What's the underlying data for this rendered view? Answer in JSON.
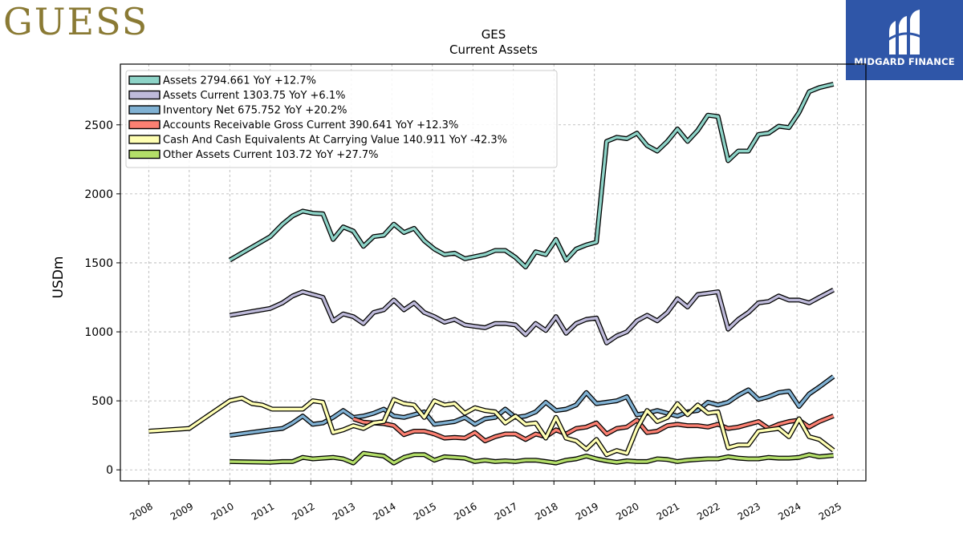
{
  "brand": {
    "name": "GUESS"
  },
  "partner": {
    "name": "MIDGARD FINANCE"
  },
  "chart_data": {
    "type": "line",
    "title": "GES",
    "subtitle": "Current  Assets",
    "ylabel": "USDm",
    "xlabel": "",
    "xlim": [
      2007.3,
      2025.7
    ],
    "ylim": [
      -80,
      2940
    ],
    "yticks": [
      0,
      500,
      1000,
      1500,
      2000,
      2500
    ],
    "xticks": [
      "2008",
      "2009",
      "2010",
      "2011",
      "2012",
      "2013",
      "2014",
      "2015",
      "2016",
      "2017",
      "2018",
      "2019",
      "2020",
      "2021",
      "2022",
      "2023",
      "2024",
      "2025"
    ],
    "grid": true,
    "legend_position": "top-left",
    "series": [
      {
        "name": "Assets",
        "legend": "Assets  2794.661 YoY +12.7%",
        "color": "#8dd3c7",
        "x": [
          2010.0,
          2011.0,
          2011.3,
          2011.55,
          2011.8,
          2012.05,
          2012.3,
          2012.55,
          2012.8,
          2013.05,
          2013.3,
          2013.55,
          2013.8,
          2014.05,
          2014.3,
          2014.55,
          2014.8,
          2015.05,
          2015.3,
          2015.55,
          2015.8,
          2016.05,
          2016.3,
          2016.55,
          2016.8,
          2017.05,
          2017.3,
          2017.55,
          2017.8,
          2018.05,
          2018.3,
          2018.55,
          2018.8,
          2019.05,
          2019.3,
          2019.55,
          2019.8,
          2020.05,
          2020.3,
          2020.55,
          2020.8,
          2021.05,
          2021.3,
          2021.55,
          2021.8,
          2022.05,
          2022.3,
          2022.55,
          2022.8,
          2023.05,
          2023.3,
          2023.55,
          2023.8,
          2024.05,
          2024.3,
          2024.55,
          2024.9
        ],
        "values": [
          1520,
          1690,
          1780,
          1840,
          1875,
          1860,
          1855,
          1670,
          1760,
          1730,
          1620,
          1690,
          1700,
          1780,
          1720,
          1750,
          1660,
          1600,
          1560,
          1570,
          1530,
          1545,
          1560,
          1590,
          1590,
          1540,
          1470,
          1580,
          1560,
          1670,
          1520,
          1600,
          1630,
          1650,
          2380,
          2410,
          2400,
          2440,
          2350,
          2310,
          2380,
          2470,
          2380,
          2460,
          2570,
          2560,
          2240,
          2310,
          2310,
          2430,
          2440,
          2490,
          2480,
          2590,
          2740,
          2770,
          2795
        ]
      },
      {
        "name": "Assets Current",
        "legend": "Assets Current  1303.75 YoY +6.1%",
        "color": "#bebada",
        "x": [
          2010.0,
          2011.0,
          2011.3,
          2011.55,
          2011.8,
          2012.05,
          2012.3,
          2012.55,
          2012.8,
          2013.05,
          2013.3,
          2013.55,
          2013.8,
          2014.05,
          2014.3,
          2014.55,
          2014.8,
          2015.05,
          2015.3,
          2015.55,
          2015.8,
          2016.05,
          2016.3,
          2016.55,
          2016.8,
          2017.05,
          2017.3,
          2017.55,
          2017.8,
          2018.05,
          2018.3,
          2018.55,
          2018.8,
          2019.05,
          2019.3,
          2019.55,
          2019.8,
          2020.05,
          2020.3,
          2020.55,
          2020.8,
          2021.05,
          2021.3,
          2021.55,
          2021.8,
          2022.05,
          2022.3,
          2022.55,
          2022.8,
          2023.05,
          2023.3,
          2023.55,
          2023.8,
          2024.05,
          2024.3,
          2024.55,
          2024.9
        ],
        "values": [
          1120,
          1170,
          1210,
          1260,
          1290,
          1270,
          1250,
          1080,
          1130,
          1110,
          1060,
          1140,
          1160,
          1230,
          1160,
          1210,
          1140,
          1110,
          1070,
          1090,
          1050,
          1040,
          1030,
          1060,
          1060,
          1050,
          980,
          1060,
          1010,
          1110,
          990,
          1060,
          1090,
          1100,
          920,
          970,
          1000,
          1080,
          1120,
          1080,
          1140,
          1240,
          1180,
          1270,
          1280,
          1290,
          1020,
          1090,
          1140,
          1210,
          1220,
          1260,
          1230,
          1230,
          1210,
          1250,
          1304
        ]
      },
      {
        "name": "Inventory Net",
        "legend": "Inventory Net  675.752 YoY +20.2%",
        "color": "#80b1d3",
        "x": [
          2010.0,
          2011.0,
          2011.3,
          2011.55,
          2011.8,
          2012.05,
          2012.3,
          2012.55,
          2012.8,
          2013.05,
          2013.3,
          2013.55,
          2013.8,
          2014.05,
          2014.3,
          2014.55,
          2014.8,
          2015.05,
          2015.3,
          2015.55,
          2015.8,
          2016.05,
          2016.3,
          2016.55,
          2016.8,
          2017.05,
          2017.3,
          2017.55,
          2017.8,
          2018.05,
          2018.3,
          2018.55,
          2018.8,
          2019.05,
          2019.3,
          2019.55,
          2019.8,
          2020.05,
          2020.3,
          2020.55,
          2020.8,
          2021.05,
          2021.3,
          2021.55,
          2021.8,
          2022.05,
          2022.3,
          2022.55,
          2022.8,
          2023.05,
          2023.3,
          2023.55,
          2023.8,
          2024.05,
          2024.3,
          2024.55,
          2024.9
        ],
        "values": [
          250,
          290,
          300,
          340,
          390,
          330,
          340,
          380,
          430,
          380,
          390,
          410,
          440,
          390,
          380,
          400,
          420,
          330,
          340,
          350,
          380,
          330,
          370,
          380,
          440,
          380,
          390,
          420,
          490,
          430,
          440,
          470,
          560,
          480,
          490,
          500,
          530,
          400,
          410,
          430,
          410,
          390,
          420,
          430,
          490,
          470,
          490,
          540,
          580,
          510,
          530,
          560,
          570,
          460,
          550,
          600,
          676
        ]
      },
      {
        "name": "Accounts Receivable Gross Current",
        "legend": "Accounts Receivable Gross Current  390.641 YoY +12.3%",
        "color": "#fb8072",
        "x": [
          2013.05,
          2013.3,
          2013.55,
          2013.8,
          2014.05,
          2014.3,
          2014.55,
          2014.8,
          2015.05,
          2015.3,
          2015.55,
          2015.8,
          2016.05,
          2016.3,
          2016.55,
          2016.8,
          2017.05,
          2017.3,
          2017.55,
          2017.8,
          2018.05,
          2018.3,
          2018.55,
          2018.8,
          2019.05,
          2019.3,
          2019.55,
          2019.8,
          2020.05,
          2020.3,
          2020.55,
          2020.8,
          2021.05,
          2021.3,
          2021.55,
          2021.8,
          2022.05,
          2022.3,
          2022.55,
          2022.8,
          2023.05,
          2023.3,
          2023.55,
          2023.8,
          2024.05,
          2024.3,
          2024.55,
          2024.9
        ],
        "values": [
          370,
          345,
          340,
          335,
          320,
          255,
          280,
          280,
          260,
          230,
          235,
          230,
          270,
          210,
          240,
          260,
          260,
          220,
          260,
          240,
          290,
          260,
          300,
          310,
          340,
          260,
          300,
          310,
          360,
          270,
          280,
          320,
          330,
          320,
          320,
          310,
          330,
          300,
          310,
          330,
          350,
          300,
          330,
          350,
          360,
          310,
          350,
          391
        ]
      },
      {
        "name": "Cash And Cash Equivalents At Carrying Value",
        "legend": "Cash And Cash Equivalents At Carrying Value  140.911 YoY -42.3%",
        "color": "#ffffb3",
        "x": [
          2008.0,
          2009.0,
          2010.0,
          2010.3,
          2010.55,
          2010.8,
          2011.05,
          2011.3,
          2011.55,
          2011.8,
          2012.05,
          2012.3,
          2012.55,
          2012.8,
          2013.05,
          2013.3,
          2013.55,
          2013.8,
          2014.05,
          2014.3,
          2014.55,
          2014.8,
          2015.05,
          2015.3,
          2015.55,
          2015.8,
          2016.05,
          2016.3,
          2016.55,
          2016.8,
          2017.05,
          2017.3,
          2017.55,
          2017.8,
          2018.05,
          2018.3,
          2018.55,
          2018.8,
          2019.05,
          2019.3,
          2019.55,
          2019.8,
          2020.05,
          2020.3,
          2020.55,
          2020.8,
          2021.05,
          2021.3,
          2021.55,
          2021.8,
          2022.05,
          2022.3,
          2022.55,
          2022.8,
          2023.05,
          2023.3,
          2023.55,
          2023.8,
          2024.05,
          2024.3,
          2024.55,
          2024.9
        ],
        "values": [
          280,
          300,
          500,
          520,
          480,
          470,
          440,
          440,
          440,
          440,
          500,
          490,
          270,
          290,
          320,
          300,
          340,
          350,
          510,
          480,
          470,
          380,
          500,
          470,
          480,
          410,
          450,
          430,
          420,
          340,
          390,
          330,
          340,
          230,
          380,
          230,
          210,
          150,
          220,
          110,
          140,
          120,
          300,
          430,
          350,
          380,
          480,
          400,
          470,
          410,
          420,
          160,
          180,
          180,
          280,
          290,
          300,
          240,
          370,
          240,
          220,
          141
        ]
      },
      {
        "name": "Other Assets Current",
        "legend": "Other Assets Current  103.72 YoY +27.7%",
        "color": "#b3de69",
        "x": [
          2010.0,
          2011.0,
          2011.3,
          2011.55,
          2011.8,
          2012.05,
          2012.3,
          2012.55,
          2012.8,
          2013.05,
          2013.3,
          2013.55,
          2013.8,
          2014.05,
          2014.3,
          2014.55,
          2014.8,
          2015.05,
          2015.3,
          2015.55,
          2015.8,
          2016.05,
          2016.3,
          2016.55,
          2016.8,
          2017.05,
          2017.3,
          2017.55,
          2017.8,
          2018.05,
          2018.3,
          2018.55,
          2018.8,
          2019.05,
          2019.3,
          2019.55,
          2019.8,
          2020.05,
          2020.3,
          2020.55,
          2020.8,
          2021.05,
          2021.3,
          2021.55,
          2021.8,
          2022.05,
          2022.3,
          2022.55,
          2022.8,
          2023.05,
          2023.3,
          2023.55,
          2023.8,
          2024.05,
          2024.3,
          2024.55,
          2024.9
        ],
        "values": [
          60,
          55,
          60,
          60,
          90,
          80,
          85,
          90,
          80,
          50,
          120,
          110,
          100,
          50,
          90,
          110,
          110,
          70,
          95,
          90,
          85,
          60,
          70,
          60,
          65,
          60,
          70,
          70,
          60,
          50,
          70,
          80,
          100,
          80,
          65,
          55,
          65,
          60,
          60,
          80,
          75,
          60,
          70,
          75,
          80,
          80,
          95,
          85,
          80,
          80,
          90,
          85,
          85,
          90,
          110,
          95,
          104
        ]
      }
    ]
  }
}
